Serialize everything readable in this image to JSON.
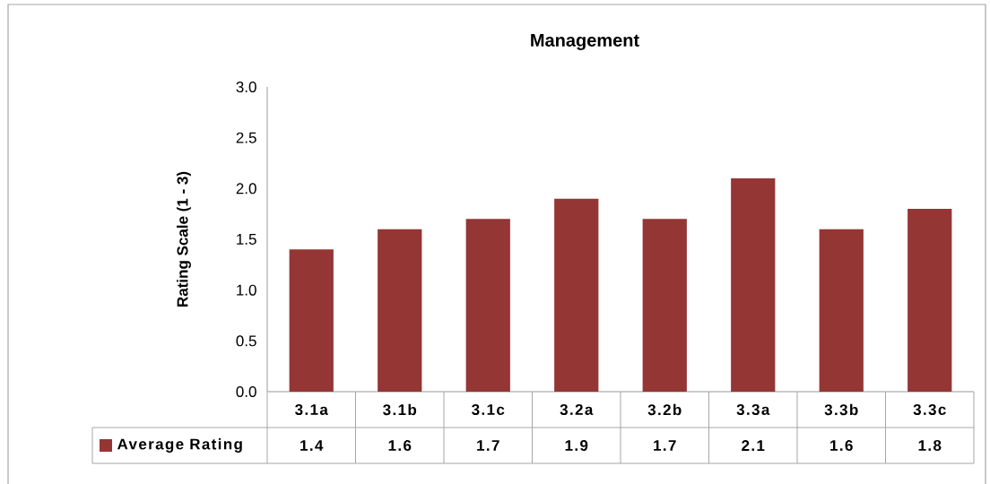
{
  "chart_data": {
    "type": "bar",
    "title": "Management",
    "ylabel": "Rating Scale (1 - 3)",
    "categories": [
      "3.1a",
      "3.1b",
      "3.1c",
      "3.2a",
      "3.2b",
      "3.3a",
      "3.3b",
      "3.3c"
    ],
    "series": [
      {
        "name": "Average Rating",
        "color": "#943634",
        "values": [
          1.4,
          1.6,
          1.7,
          1.9,
          1.7,
          2.1,
          1.6,
          1.8
        ]
      }
    ],
    "ylim": [
      0,
      3
    ],
    "yticks": [
      {
        "value": 0,
        "label": "0.0"
      },
      {
        "value": 0.5,
        "label": "0.5"
      },
      {
        "value": 1,
        "label": "1.0"
      },
      {
        "value": 1.5,
        "label": "1.5"
      },
      {
        "value": 2,
        "label": "2.0"
      },
      {
        "value": 2.5,
        "label": "2.5"
      },
      {
        "value": 3,
        "label": "3.0"
      }
    ],
    "grid": false,
    "legend": "bottom",
    "data_labels": true
  }
}
